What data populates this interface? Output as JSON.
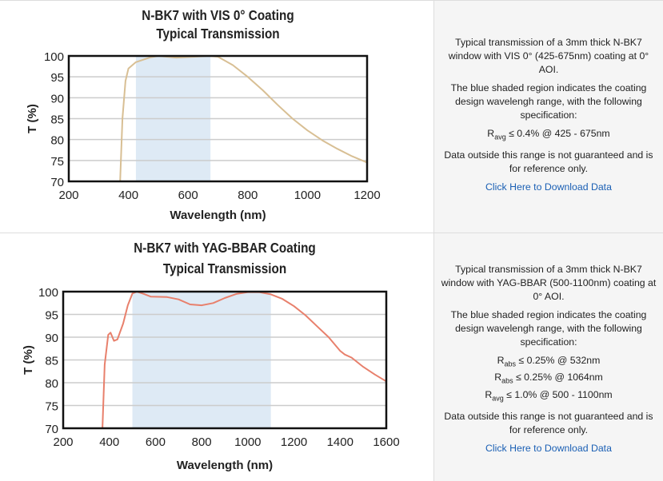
{
  "chart_data": [
    {
      "type": "line",
      "title": [
        "N-BK7 with VIS 0° Coating",
        "Typical Transmission"
      ],
      "xlabel": "Wavelength (nm)",
      "ylabel": "T (%)",
      "xlim": [
        200,
        1200
      ],
      "ylim": [
        70,
        100
      ],
      "xticks": [
        200,
        400,
        600,
        800,
        1000,
        1200
      ],
      "yticks": [
        70,
        75,
        80,
        85,
        90,
        95,
        100
      ],
      "shaded_region": [
        425,
        675
      ],
      "line_color": "#d8bf94",
      "shade_color": "#deeaf5",
      "x": [
        372,
        380,
        390,
        400,
        425,
        475,
        500,
        560,
        620,
        670,
        700,
        750,
        800,
        850,
        900,
        950,
        1000,
        1050,
        1100,
        1150,
        1200
      ],
      "y": [
        70,
        85,
        94,
        97,
        98.5,
        99.7,
        100,
        99.6,
        99.8,
        100,
        99.8,
        97.8,
        95,
        91.8,
        88.3,
        85,
        82.2,
        79.8,
        77.8,
        76,
        74.5
      ]
    },
    {
      "type": "line",
      "title": [
        "N-BK7 with YAG-BBAR Coating",
        "Typical Transmission"
      ],
      "xlabel": "Wavelength (nm)",
      "ylabel": "T (%)",
      "xlim": [
        200,
        1600
      ],
      "ylim": [
        70,
        100
      ],
      "xticks": [
        200,
        400,
        600,
        800,
        1000,
        1200,
        1400,
        1600
      ],
      "yticks": [
        70,
        75,
        80,
        85,
        90,
        95,
        100
      ],
      "shaded_region": [
        500,
        1100
      ],
      "line_color": "#e8806c",
      "shade_color": "#deeaf5",
      "x": [
        370,
        380,
        395,
        405,
        420,
        435,
        460,
        480,
        500,
        520,
        550,
        580,
        650,
        700,
        750,
        800,
        850,
        900,
        950,
        1000,
        1050,
        1100,
        1150,
        1200,
        1250,
        1300,
        1350,
        1400,
        1420,
        1450,
        1500,
        1550,
        1600
      ],
      "y": [
        70,
        84,
        90.5,
        91,
        89.2,
        89.5,
        93,
        97,
        99.6,
        100,
        99.5,
        98.9,
        98.8,
        98.3,
        97.2,
        97,
        97.5,
        98.6,
        99.5,
        99.9,
        99.9,
        99.4,
        98.4,
        96.8,
        94.8,
        92.4,
        90,
        87,
        86.2,
        85.5,
        83.5,
        81.8,
        80.3
      ]
    }
  ],
  "descriptions": [
    {
      "intro": "Typical transmission of a 3mm thick N-BK7 window with VIS 0° (425-675nm) coating at 0° AOI.",
      "shade_note": "The blue shaded region indicates the coating design wavelengh range, with the following specification:",
      "specs": [
        {
          "sym": "R",
          "sub": "avg",
          "text": " ≤ 0.4% @ 425 - 675nm"
        }
      ],
      "disclaimer": "Data outside this range is not guaranteed and is for reference only.",
      "link": "Click Here to Download Data"
    },
    {
      "intro": "Typical transmission of a 3mm thick N-BK7 window with YAG-BBAR (500-1100nm) coating at 0° AOI.",
      "shade_note": "The blue shaded region indicates the coating design wavelengh range, with the following specification:",
      "specs": [
        {
          "sym": "R",
          "sub": "abs",
          "text": " ≤ 0.25% @ 532nm"
        },
        {
          "sym": "R",
          "sub": "abs",
          "text": " ≤ 0.25% @ 1064nm"
        },
        {
          "sym": "R",
          "sub": "avg",
          "text": " ≤ 1.0% @ 500 - 1100nm"
        }
      ],
      "disclaimer": "Data outside this range is not guaranteed and is for reference only.",
      "link": "Click Here to Download Data"
    }
  ]
}
